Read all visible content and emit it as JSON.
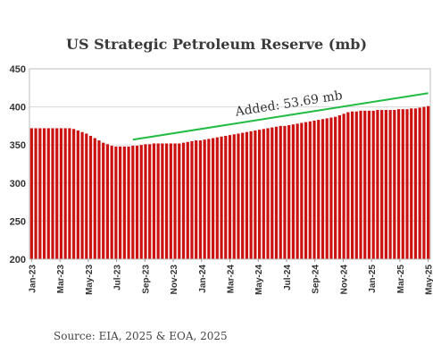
{
  "chart_data": {
    "type": "bar",
    "title": "US Strategic Petroleum Reserve (mb)",
    "xlabel": "",
    "ylabel": "",
    "ylim": [
      200,
      450
    ],
    "yticks": [
      200,
      250,
      300,
      350,
      400,
      450
    ],
    "x_tick_labels": [
      "Jan-23",
      "Mar-23",
      "May-23",
      "Jul-23",
      "Sep-23",
      "Nov-23",
      "Jan-24",
      "Mar-24",
      "May-24",
      "Jul-24",
      "Sep-24",
      "Nov-24",
      "Jan-25",
      "Mar-25",
      "May-25"
    ],
    "grid": "horizontal",
    "bar_color": "#cc1111",
    "series": [
      {
        "values": [
          372,
          372,
          372,
          372,
          372,
          372,
          372,
          372,
          372,
          372,
          371,
          369,
          367,
          365,
          362,
          359,
          356,
          353,
          351,
          349,
          348,
          348,
          348,
          348,
          349,
          349,
          350,
          351,
          351,
          352,
          352,
          352,
          352,
          352,
          352,
          352,
          353,
          354,
          355,
          356,
          356,
          357,
          358,
          359,
          360,
          361,
          362,
          363,
          364,
          365,
          366,
          367,
          368,
          369,
          370,
          371,
          372,
          373,
          374,
          375,
          375,
          376,
          377,
          378,
          379,
          380,
          381,
          382,
          383,
          384,
          385,
          386,
          387,
          389,
          391,
          393,
          394,
          394,
          395,
          395,
          395,
          395,
          396,
          396,
          396,
          396,
          396,
          397,
          397,
          397,
          398,
          398,
          399,
          400,
          401
        ]
      }
    ],
    "annotations": [
      {
        "text": "Added: 53.69 mb",
        "type": "trend-line",
        "color": "#22bb44",
        "from": {
          "bar": 24,
          "y": 357
        },
        "to": {
          "bar": 94,
          "y": 418
        }
      }
    ]
  },
  "footer": {
    "source": "Source: EIA, 2025 & EOA, 2025"
  }
}
